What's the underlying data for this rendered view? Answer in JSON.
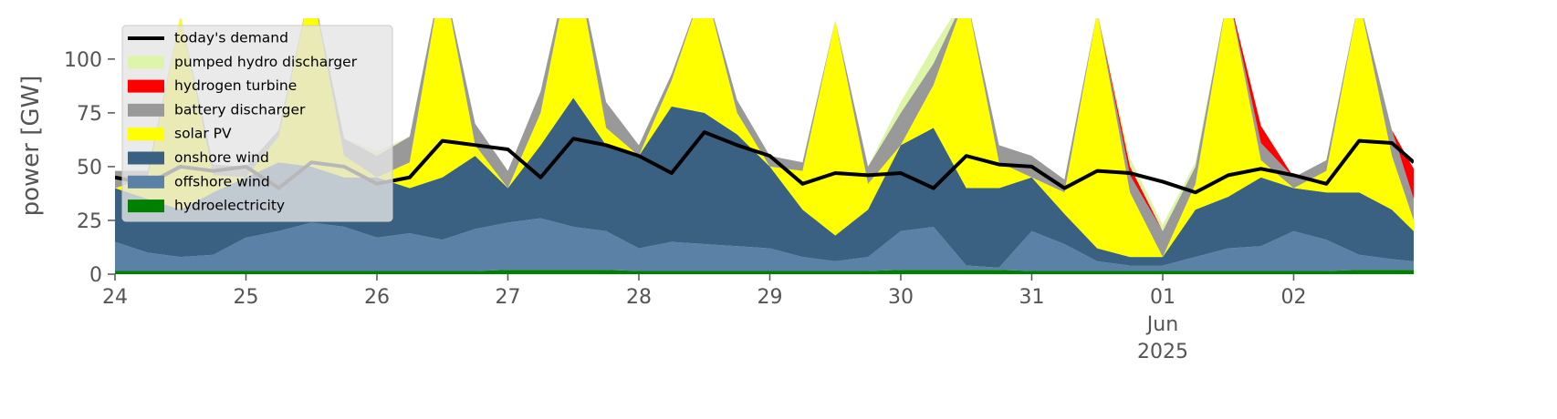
{
  "chart_data": {
    "type": "area",
    "ylabel": "power [GW]",
    "x": [
      "2025-05-24T00:00",
      "2025-05-24T06:00",
      "2025-05-24T12:00",
      "2025-05-24T18:00",
      "2025-05-25T00:00",
      "2025-05-25T06:00",
      "2025-05-25T12:00",
      "2025-05-25T18:00",
      "2025-05-26T00:00",
      "2025-05-26T06:00",
      "2025-05-26T12:00",
      "2025-05-26T18:00",
      "2025-05-27T00:00",
      "2025-05-27T06:00",
      "2025-05-27T12:00",
      "2025-05-27T18:00",
      "2025-05-28T00:00",
      "2025-05-28T06:00",
      "2025-05-28T12:00",
      "2025-05-28T18:00",
      "2025-05-29T00:00",
      "2025-05-29T06:00",
      "2025-05-29T12:00",
      "2025-05-29T18:00",
      "2025-05-30T00:00",
      "2025-05-30T06:00",
      "2025-05-30T12:00",
      "2025-05-30T18:00",
      "2025-05-31T00:00",
      "2025-05-31T06:00",
      "2025-05-31T12:00",
      "2025-05-31T18:00",
      "2025-06-01T00:00",
      "2025-06-01T06:00",
      "2025-06-01T12:00",
      "2025-06-01T18:00",
      "2025-06-02T00:00",
      "2025-06-02T06:00",
      "2025-06-02T12:00",
      "2025-06-02T18:00",
      "2025-06-02T22:00"
    ],
    "series": [
      {
        "name": "hydroelectricity",
        "color": "#008000",
        "values": [
          1.5,
          1.5,
          1.5,
          1.5,
          1.5,
          1.5,
          1.5,
          1.5,
          1.5,
          1.5,
          1.5,
          1.5,
          2,
          2,
          2,
          2,
          1.5,
          1.5,
          1.5,
          1.5,
          1.5,
          1.5,
          1.5,
          1.5,
          2,
          2,
          2,
          2,
          1.5,
          1.5,
          1.5,
          1.5,
          1.5,
          1.5,
          1.5,
          1.5,
          1.5,
          1.5,
          2,
          2,
          2
        ]
      },
      {
        "name": "offshore wind",
        "color": "#5b82a6",
        "values": [
          13.5,
          8.5,
          6.5,
          7.5,
          15.5,
          18.5,
          22.5,
          20.5,
          15.5,
          17.5,
          14.5,
          19.5,
          22,
          24,
          20,
          18,
          10.5,
          13.5,
          12.5,
          11.5,
          10.5,
          6.5,
          4.5,
          6.5,
          18,
          20,
          2,
          1,
          18.5,
          12.5,
          4.5,
          2.5,
          2.5,
          6.5,
          10.5,
          11.5,
          18.5,
          14.5,
          7,
          5,
          4
        ]
      },
      {
        "name": "onshore wind",
        "color": "#3b6182",
        "values": [
          25,
          25,
          22,
          29,
          28,
          32,
          26,
          23,
          28,
          21,
          29,
          34,
          16,
          34,
          60,
          40,
          43,
          63,
          61,
          52,
          38,
          22,
          12,
          22,
          40,
          46,
          36,
          37,
          25,
          14,
          6,
          4,
          4,
          22,
          24,
          32,
          20,
          22,
          29,
          23,
          14
        ]
      },
      {
        "name": "solar PV",
        "color": "#ffff00",
        "values": [
          0,
          10,
          90,
          8,
          0,
          12,
          85,
          10,
          0,
          12,
          95,
          5,
          0,
          15,
          70,
          8,
          0,
          12,
          60,
          10,
          0,
          18,
          100,
          12,
          0,
          20,
          90,
          12,
          0,
          10,
          110,
          30,
          0,
          12,
          95,
          8,
          0,
          10,
          90,
          25,
          5
        ]
      },
      {
        "name": "battery discharger",
        "color": "#999999",
        "values": [
          8,
          3,
          0,
          5,
          5,
          3,
          0,
          8,
          10,
          12,
          0,
          10,
          8,
          10,
          0,
          12,
          5,
          3,
          0,
          6,
          5,
          4,
          0,
          8,
          15,
          10,
          0,
          8,
          10,
          6,
          0,
          8,
          12,
          8,
          0,
          8,
          5,
          5,
          0,
          12,
          10
        ]
      },
      {
        "name": "hydrogen turbine",
        "color": "#ff0000",
        "values": [
          0,
          0,
          0,
          0,
          0,
          0,
          0,
          0,
          0,
          0,
          0,
          0,
          0,
          0,
          0,
          0,
          0,
          0,
          0,
          0,
          0,
          0,
          0,
          0,
          0,
          0,
          0,
          0,
          0,
          0,
          0,
          4,
          0,
          0,
          0,
          8,
          0,
          0,
          0,
          0,
          14
        ]
      },
      {
        "name": "pumped hydro discharger",
        "color": "#ddf5a8",
        "values": [
          0,
          0,
          0,
          0,
          0,
          0,
          0,
          0,
          2,
          0,
          0,
          0,
          0,
          0,
          0,
          0,
          0,
          0,
          0,
          0,
          0,
          0,
          0,
          0,
          5,
          8,
          0,
          0,
          0,
          0,
          0,
          4,
          3,
          2,
          0,
          0,
          0,
          0,
          0,
          0,
          0
        ]
      },
      {
        "name": "today's demand",
        "color": "#000000",
        "type": "line",
        "values": [
          45,
          42,
          50,
          48,
          50,
          40,
          52,
          50,
          42,
          45,
          62,
          60,
          58,
          45,
          63,
          60,
          55,
          47,
          66,
          60,
          55,
          42,
          47,
          46,
          47,
          40,
          55,
          51,
          50,
          40,
          48,
          47,
          43,
          38,
          46,
          49,
          46,
          42,
          62,
          61,
          52
        ]
      }
    ],
    "xlim": [
      "2025-05-24T00:00",
      "2025-06-02T22:00"
    ],
    "xticks": [
      {
        "value": "2025-05-24T00:00",
        "label": "24"
      },
      {
        "value": "2025-05-25T00:00",
        "label": "25"
      },
      {
        "value": "2025-05-26T00:00",
        "label": "26"
      },
      {
        "value": "2025-05-27T00:00",
        "label": "27"
      },
      {
        "value": "2025-05-28T00:00",
        "label": "28"
      },
      {
        "value": "2025-05-29T00:00",
        "label": "29"
      },
      {
        "value": "2025-05-30T00:00",
        "label": "30"
      },
      {
        "value": "2025-05-31T00:00",
        "label": "31"
      },
      {
        "value": "2025-06-01T00:00",
        "label": "01\nJun\n2025"
      },
      {
        "value": "2025-06-02T00:00",
        "label": "02"
      }
    ],
    "ylim": [
      0,
      119
    ],
    "yticks": [
      0,
      25,
      50,
      75,
      100
    ],
    "grid": false,
    "legend": "upper left"
  }
}
